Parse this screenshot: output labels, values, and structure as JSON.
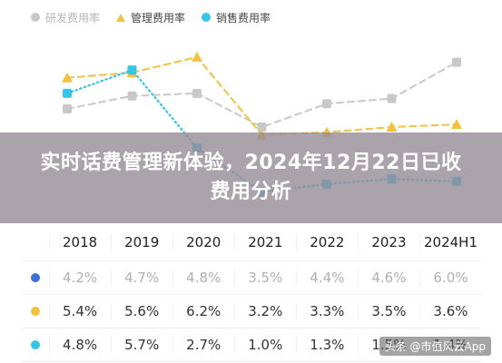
{
  "colors": {
    "rd": "#c8c8c8",
    "rd_dot": "#3b6fd6",
    "mgmt": "#f2c140",
    "sales": "#35c5e8"
  },
  "legend": {
    "items": [
      {
        "label": "研发费用率",
        "color": "#c8c8c8",
        "marker": "circle",
        "muted": true
      },
      {
        "label": "管理费用率",
        "color": "#f2c140",
        "marker": "triangle",
        "muted": false
      },
      {
        "label": "销售费用率",
        "color": "#35c5e8",
        "marker": "circle",
        "muted": false
      }
    ]
  },
  "banner": {
    "title": "实时话费管理新体验，2024年12月22日已收费用分析"
  },
  "chart_data": {
    "type": "line",
    "title": "",
    "x": [
      "2018",
      "2019",
      "2020",
      "2021",
      "2022",
      "2023",
      "2024H1"
    ],
    "ylim": [
      0,
      7
    ],
    "grid": false,
    "legend_position": "top-left",
    "series": [
      {
        "name": "研发费用率",
        "values": [
          4.2,
          4.7,
          4.8,
          3.5,
          4.4,
          4.6,
          6.0
        ],
        "style": "dashed",
        "marker": "circle"
      },
      {
        "name": "管理费用率",
        "values": [
          5.4,
          5.6,
          6.2,
          3.2,
          3.3,
          3.5,
          3.6
        ],
        "style": "dashed",
        "marker": "triangle"
      },
      {
        "name": "销售费用率",
        "values": [
          4.8,
          5.7,
          2.7,
          1.0,
          1.3,
          1.5,
          1.4
        ],
        "style": "dotted",
        "marker": "circle"
      }
    ]
  },
  "table": {
    "headers": [
      "2018",
      "2019",
      "2020",
      "2021",
      "2022",
      "2023",
      "2024H1"
    ],
    "rows": [
      {
        "marker": "rd",
        "muted": true,
        "values": [
          "4.2%",
          "4.7%",
          "4.8%",
          "3.5%",
          "4.4%",
          "4.6%",
          "6.0%"
        ]
      },
      {
        "marker": "mgmt",
        "muted": false,
        "values": [
          "5.4%",
          "5.6%",
          "6.2%",
          "3.2%",
          "3.3%",
          "3.5%",
          "3.6%"
        ]
      },
      {
        "marker": "sales",
        "muted": false,
        "values": [
          "4.8%",
          "5.7%",
          "2.7%",
          "1.0%",
          "1.3%",
          "1.5%",
          "1.4%"
        ]
      }
    ]
  },
  "watermark": "头条 @市值风云App"
}
